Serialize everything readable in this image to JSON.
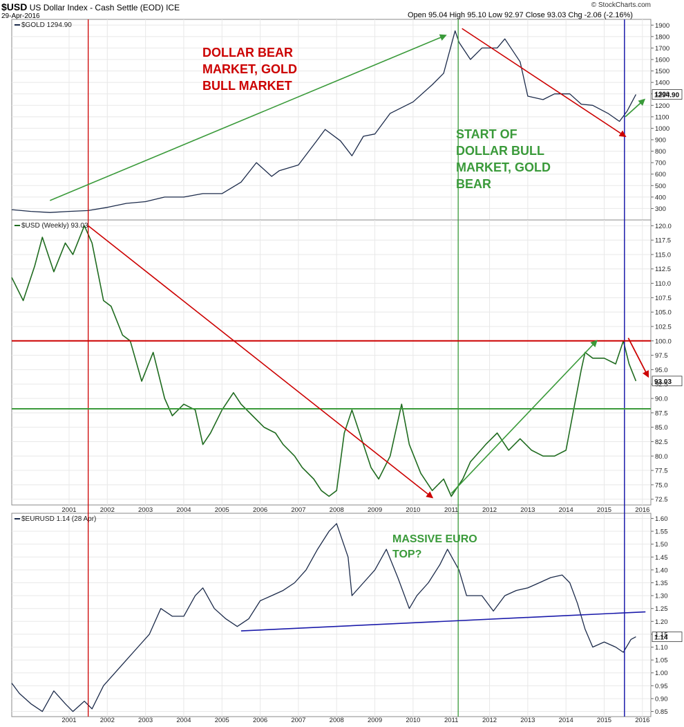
{
  "header": {
    "symbol": "$USD",
    "name": "US Dollar Index - Cash Settle (EOD)  ICE",
    "date": "29-Apr-2016",
    "ohlc": "Open 95.04  High 95.10  Low 92.97  Close 93.03  Chg -2.06 (-2.16%)",
    "brand": "© StockCharts.com"
  },
  "x_ticks": [
    "2001",
    "2002",
    "2003",
    "2004",
    "2005",
    "2006",
    "2007",
    "2008",
    "2009",
    "2010",
    "2011",
    "2012",
    "2013",
    "2014",
    "2015",
    "2016"
  ],
  "annotations": {
    "bear": [
      "DOLLAR BEAR",
      "MARKET, GOLD",
      "BULL MARKET"
    ],
    "bull": [
      "START OF",
      "DOLLAR BULL",
      "MARKET, GOLD",
      "BEAR"
    ],
    "euro": [
      "MASSIVE EURO",
      "TOP?"
    ]
  },
  "colors": {
    "price_line": "#1b2a4a",
    "usd_line": "#1f6b1f",
    "annotation_red": "#cc0000",
    "annotation_green": "#3a9a3a",
    "vertical_blue": "#1a1aaa",
    "grid": "#e8e8e8"
  },
  "chart_data": [
    {
      "type": "line",
      "title": "$GOLD 1294.90",
      "last_value": "1294.90",
      "ylim": [
        200,
        1950
      ],
      "y_ticks": [
        300,
        400,
        500,
        600,
        700,
        800,
        900,
        1000,
        1100,
        1200,
        1300,
        1400,
        1500,
        1600,
        1700,
        1800,
        1900
      ],
      "x": [
        2000.0,
        2000.5,
        2001.0,
        2001.5,
        2002.0,
        2002.5,
        2003.0,
        2003.5,
        2004.0,
        2004.5,
        2005.0,
        2005.5,
        2006.0,
        2006.4,
        2006.8,
        2007.0,
        2007.5,
        2008.0,
        2008.2,
        2008.6,
        2008.9,
        2009.2,
        2009.5,
        2009.9,
        2010.5,
        2011.0,
        2011.3,
        2011.6,
        2011.7,
        2012.0,
        2012.3,
        2012.7,
        2012.9,
        2013.3,
        2013.5,
        2013.9,
        2014.2,
        2014.6,
        2014.9,
        2015.2,
        2015.6,
        2015.9,
        2016.1,
        2016.33
      ],
      "y": [
        290,
        275,
        265,
        275,
        282,
        310,
        345,
        360,
        400,
        400,
        430,
        430,
        530,
        700,
        580,
        630,
        680,
        900,
        990,
        890,
        760,
        930,
        950,
        1130,
        1230,
        1380,
        1480,
        1850,
        1750,
        1600,
        1700,
        1700,
        1780,
        1580,
        1280,
        1250,
        1300,
        1300,
        1210,
        1200,
        1130,
        1060,
        1150,
        1294.9
      ]
    },
    {
      "type": "line",
      "title": "$USD (Weekly) 93.03",
      "last_value": "93.03",
      "ylim": [
        71.5,
        121
      ],
      "y_ticks": [
        72.5,
        75.0,
        77.5,
        80.0,
        82.5,
        85.0,
        87.5,
        90.0,
        92.5,
        95.0,
        97.5,
        100.0,
        102.5,
        105.0,
        107.5,
        110.0,
        112.5,
        115.0,
        117.5,
        120.0
      ],
      "x": [
        2000.0,
        2000.3,
        2000.6,
        2000.8,
        2001.1,
        2001.4,
        2001.6,
        2001.9,
        2002.1,
        2002.4,
        2002.6,
        2002.9,
        2003.1,
        2003.4,
        2003.7,
        2004.0,
        2004.2,
        2004.5,
        2004.8,
        2005.0,
        2005.2,
        2005.5,
        2005.8,
        2006.0,
        2006.3,
        2006.6,
        2006.9,
        2007.1,
        2007.4,
        2007.6,
        2007.9,
        2008.1,
        2008.3,
        2008.5,
        2008.7,
        2008.9,
        2009.2,
        2009.4,
        2009.6,
        2009.9,
        2010.2,
        2010.4,
        2010.7,
        2011.0,
        2011.3,
        2011.5,
        2011.8,
        2012.0,
        2012.4,
        2012.7,
        2013.0,
        2013.3,
        2013.6,
        2013.9,
        2014.2,
        2014.5,
        2014.7,
        2014.9,
        2015.0,
        2015.2,
        2015.5,
        2015.8,
        2016.0,
        2016.15,
        2016.33
      ],
      "y": [
        111,
        107,
        113,
        118,
        112,
        117,
        115,
        120,
        117,
        107,
        106,
        101,
        100,
        93,
        98,
        90,
        87,
        89,
        88,
        82,
        84,
        88,
        91,
        89,
        87,
        85,
        84,
        82,
        80,
        78,
        76,
        74,
        73,
        74,
        84,
        88,
        82,
        78,
        76,
        80,
        89,
        82,
        77,
        74,
        76,
        73,
        76,
        79,
        82,
        84,
        81,
        83,
        81,
        80,
        80,
        81,
        88,
        95,
        98,
        97,
        97,
        96,
        100,
        96,
        93.03
      ]
    },
    {
      "type": "line",
      "title": "$EURUSD 1.14 (28 Apr)",
      "last_value": "1.14",
      "ylim": [
        0.83,
        1.62
      ],
      "y_ticks": [
        0.85,
        0.9,
        0.95,
        1.0,
        1.05,
        1.1,
        1.15,
        1.2,
        1.25,
        1.3,
        1.35,
        1.4,
        1.45,
        1.5,
        1.55,
        1.6
      ],
      "x": [
        2000.0,
        2000.2,
        2000.5,
        2000.8,
        2001.1,
        2001.4,
        2001.6,
        2001.9,
        2002.1,
        2002.4,
        2002.7,
        2003.0,
        2003.3,
        2003.6,
        2003.9,
        2004.2,
        2004.5,
        2004.8,
        2005.0,
        2005.3,
        2005.6,
        2005.9,
        2006.2,
        2006.5,
        2006.8,
        2007.1,
        2007.4,
        2007.7,
        2008.0,
        2008.3,
        2008.5,
        2008.8,
        2008.9,
        2009.2,
        2009.5,
        2009.8,
        2010.1,
        2010.4,
        2010.6,
        2010.9,
        2011.2,
        2011.4,
        2011.7,
        2011.9,
        2012.3,
        2012.6,
        2012.9,
        2013.2,
        2013.5,
        2013.8,
        2014.1,
        2014.4,
        2014.6,
        2014.8,
        2015.0,
        2015.2,
        2015.5,
        2015.8,
        2016.0,
        2016.2,
        2016.33
      ],
      "y": [
        0.96,
        0.92,
        0.88,
        0.85,
        0.93,
        0.88,
        0.85,
        0.89,
        0.86,
        0.95,
        1.0,
        1.05,
        1.1,
        1.15,
        1.25,
        1.22,
        1.22,
        1.3,
        1.33,
        1.25,
        1.21,
        1.18,
        1.21,
        1.28,
        1.3,
        1.32,
        1.35,
        1.4,
        1.48,
        1.55,
        1.58,
        1.45,
        1.3,
        1.35,
        1.4,
        1.48,
        1.37,
        1.25,
        1.3,
        1.35,
        1.42,
        1.48,
        1.4,
        1.3,
        1.3,
        1.24,
        1.3,
        1.32,
        1.33,
        1.35,
        1.37,
        1.38,
        1.35,
        1.27,
        1.17,
        1.1,
        1.12,
        1.1,
        1.08,
        1.13,
        1.14
      ]
    }
  ]
}
